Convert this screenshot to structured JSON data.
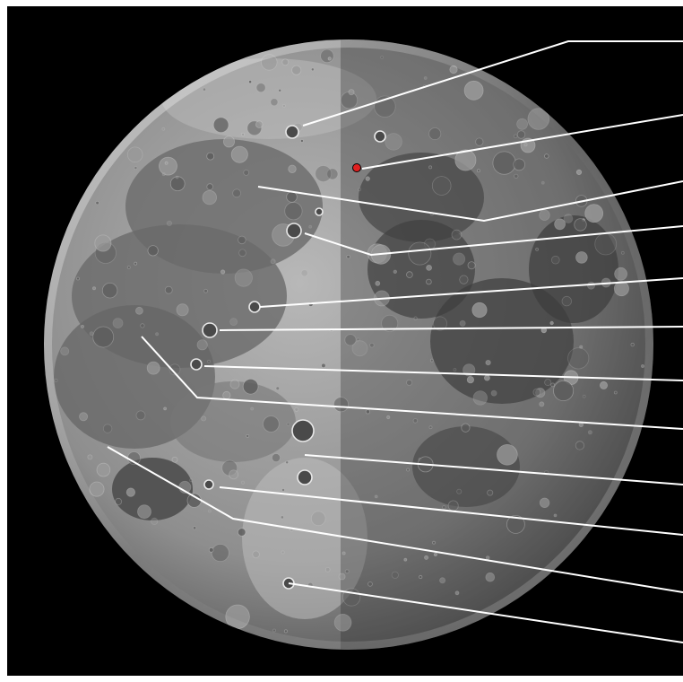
{
  "scene": {
    "background_color": "#000000",
    "border_color": "#ffffff",
    "moon_light_color": "#c8c8c8",
    "moon_mid_color": "#8e8e8e",
    "moon_dark_color": "#3c3c3c",
    "leader_line_color": "#ffffff",
    "marker_color": "#e02020",
    "leader_count": 12
  }
}
